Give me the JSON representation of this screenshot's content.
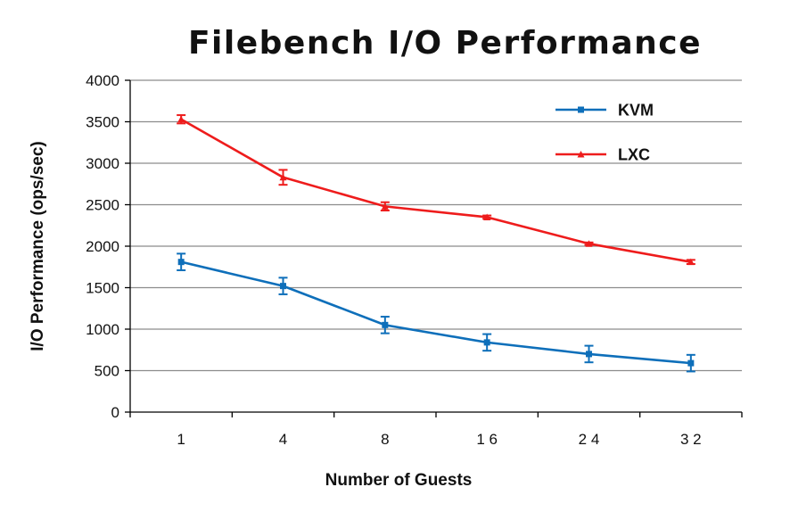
{
  "chart_data": {
    "type": "line",
    "title": "Filebench I/O Performance",
    "xlabel": "Number of Guests",
    "ylabel": "I/O Performance (ops/sec)",
    "categories": [
      "1",
      "4",
      "8",
      "1 6",
      "2 4",
      "3 2"
    ],
    "ylim": [
      0,
      4000
    ],
    "yticks": [
      0,
      500,
      1000,
      1500,
      2000,
      2500,
      3000,
      3500,
      4000
    ],
    "grid": true,
    "legend_position": "top-right",
    "series": [
      {
        "name": "KVM",
        "color": "#0e6fba",
        "marker": "square",
        "values": [
          1810,
          1520,
          1050,
          840,
          700,
          590
        ],
        "error": [
          100,
          100,
          100,
          100,
          100,
          100
        ]
      },
      {
        "name": "LXC",
        "color": "#ee1c1c",
        "marker": "triangle",
        "values": [
          3530,
          2830,
          2480,
          2350,
          2030,
          1810
        ],
        "error": [
          50,
          90,
          50,
          20,
          15,
          25
        ]
      }
    ]
  }
}
